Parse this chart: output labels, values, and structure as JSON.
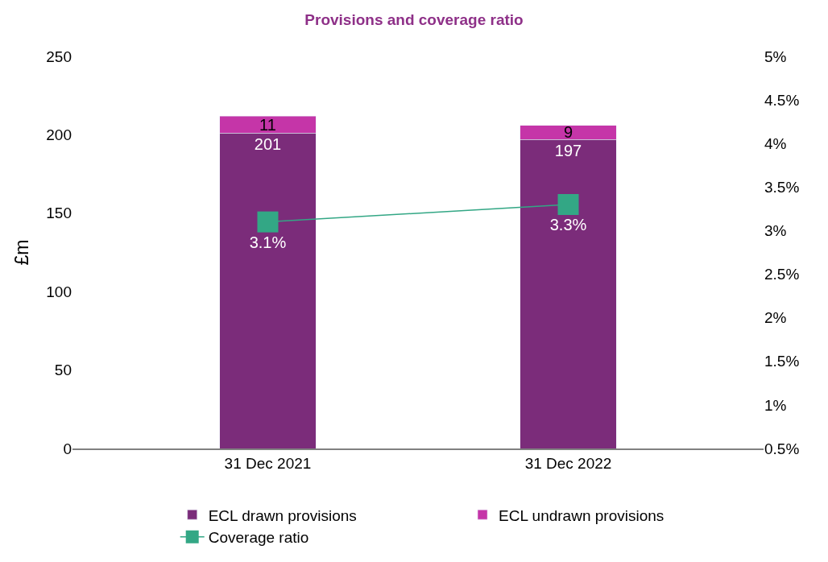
{
  "chart_data": {
    "type": "bar",
    "title": "Provisions and coverage ratio",
    "ylabel": "£m",
    "categories": [
      "31 Dec 2021",
      "31 Dec 2022"
    ],
    "stacked": true,
    "series": [
      {
        "name": "ECL drawn provisions",
        "color": "#7b2c7a",
        "values": [
          201,
          197
        ],
        "value_labels": [
          "201",
          "197"
        ]
      },
      {
        "name": "ECL undrawn provisions",
        "color": "#c535a8",
        "values": [
          11,
          9
        ],
        "value_labels": [
          "11",
          "9"
        ]
      },
      {
        "name": "Coverage ratio",
        "type": "line",
        "axis": "y2",
        "color": "#33a785",
        "marker": "square",
        "values": [
          3.1,
          3.3
        ],
        "value_labels": [
          "3.1%",
          "3.3%"
        ]
      }
    ],
    "ylim": [
      0,
      250
    ],
    "yticks": [
      0,
      50,
      100,
      150,
      200,
      250
    ],
    "y2lim": [
      0.5,
      5
    ],
    "y2ticks": [
      {
        "value": 0.5,
        "label": "0.5%"
      },
      {
        "value": 1,
        "label": "1%"
      },
      {
        "value": 1.5,
        "label": "1.5%"
      },
      {
        "value": 2,
        "label": "2%"
      },
      {
        "value": 2.5,
        "label": "2.5%"
      },
      {
        "value": 3,
        "label": "3%"
      },
      {
        "value": 3.5,
        "label": "3.5%"
      },
      {
        "value": 4,
        "label": "4%"
      },
      {
        "value": 4.5,
        "label": "4.5%"
      },
      {
        "value": 5,
        "label": "5%"
      }
    ],
    "legend": "bottom"
  }
}
